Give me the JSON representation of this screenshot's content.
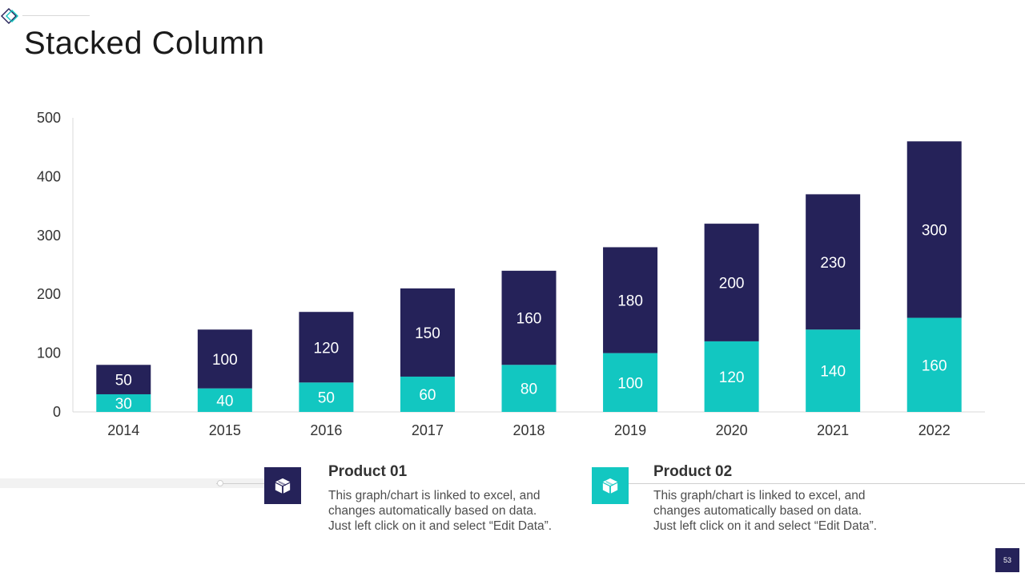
{
  "title": "Stacked Column",
  "colors": {
    "product01": "#252259",
    "product02": "#12c7c1",
    "axis": "#d9d9d9",
    "text": "#333333"
  },
  "legend": [
    {
      "title": "Product 01",
      "icon": "box-icon",
      "desc": [
        "This graph/chart is linked to excel, and",
        "changes automatically based on data.",
        "Just left click on it and select “Edit Data”."
      ]
    },
    {
      "title": "Product 02",
      "icon": "box-icon",
      "desc": [
        "This graph/chart is linked to excel, and",
        "changes automatically based on data.",
        "Just left click on it and select “Edit Data”."
      ]
    }
  ],
  "page_number": "53",
  "chart_data": {
    "type": "bar",
    "stacked": true,
    "categories": [
      "2014",
      "2015",
      "2016",
      "2017",
      "2018",
      "2019",
      "2020",
      "2021",
      "2022"
    ],
    "series": [
      {
        "name": "Product 02",
        "values": [
          30,
          40,
          50,
          60,
          80,
          100,
          120,
          140,
          160
        ]
      },
      {
        "name": "Product 01",
        "values": [
          50,
          100,
          120,
          150,
          160,
          180,
          200,
          230,
          300
        ]
      }
    ],
    "title": "",
    "xlabel": "",
    "ylabel": "",
    "ylim": [
      0,
      500
    ],
    "yticks": [
      0,
      100,
      200,
      300,
      400,
      500
    ],
    "grid": false,
    "data_labels": true
  }
}
